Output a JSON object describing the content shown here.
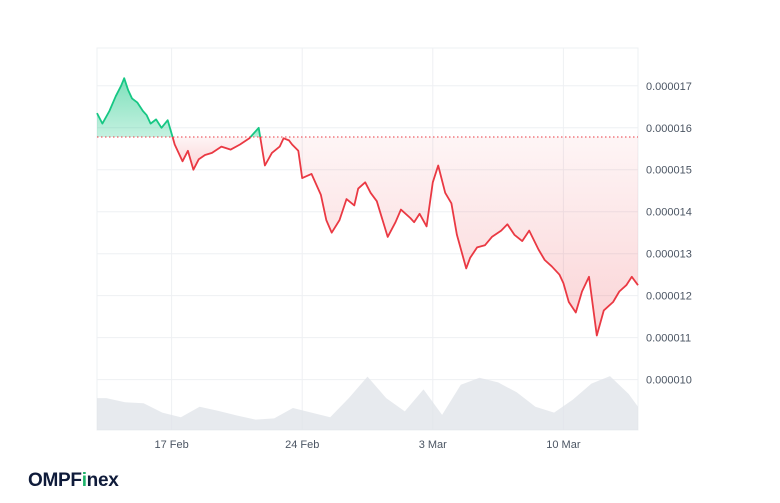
{
  "brand": {
    "name_prefix": "OMPF",
    "name_accent": "i",
    "name_suffix": "nex"
  },
  "colors": {
    "up": "#16c784",
    "down": "#ea3943",
    "volume": "#dfe3e8",
    "grid": "#eef0f3",
    "baseline": "#ea3943"
  },
  "chart_data": {
    "type": "area",
    "x_tick_labels": [
      "17 Feb",
      "24 Feb",
      "3 Mar",
      "10 Mar"
    ],
    "y_tick_labels": [
      "0.000017",
      "0.000016",
      "0.000015",
      "0.000014",
      "0.000013",
      "0.000012",
      "0.000011",
      "0.000010"
    ],
    "y_ticks": [
      1.7e-05,
      1.6e-05,
      1.5e-05,
      1.4e-05,
      1.3e-05,
      1.2e-05,
      1.1e-05,
      1e-05
    ],
    "xlim": [
      "2025-02-13",
      "2025-03-14"
    ],
    "ylim": [
      8.8e-06,
      1.79e-05
    ],
    "baseline": 1.578e-05,
    "grid": true,
    "x_ticks": [
      "2025-02-17",
      "2025-02-24",
      "2025-03-03",
      "2025-03-10"
    ],
    "price_series": {
      "dates": [
        "2025-02-13",
        "2025-02-13",
        "2025-02-13",
        "2025-02-14",
        "2025-02-14",
        "2025-02-14",
        "2025-02-14",
        "2025-02-14",
        "2025-02-15",
        "2025-02-15",
        "2025-02-15",
        "2025-02-15",
        "2025-02-16",
        "2025-02-16",
        "2025-02-16",
        "2025-02-17",
        "2025-02-17",
        "2025-02-17",
        "2025-02-17",
        "2025-02-18",
        "2025-02-18",
        "2025-02-18",
        "2025-02-19",
        "2025-02-19",
        "2025-02-20",
        "2025-02-20",
        "2025-02-21",
        "2025-02-21",
        "2025-02-22",
        "2025-02-22",
        "2025-02-22",
        "2025-02-23",
        "2025-02-23",
        "2025-02-23",
        "2025-02-23",
        "2025-02-24",
        "2025-02-24",
        "2025-02-25",
        "2025-02-25",
        "2025-02-25",
        "2025-02-26",
        "2025-02-26",
        "2025-02-26",
        "2025-02-27",
        "2025-02-27",
        "2025-02-27",
        "2025-02-28",
        "2025-02-28",
        "2025-03-01",
        "2025-03-01",
        "2025-03-01",
        "2025-03-02",
        "2025-03-02",
        "2025-03-02",
        "2025-03-03",
        "2025-03-03",
        "2025-03-03",
        "2025-03-04",
        "2025-03-04",
        "2025-03-04",
        "2025-03-05",
        "2025-03-05",
        "2025-03-05",
        "2025-03-06",
        "2025-03-06",
        "2025-03-07",
        "2025-03-07",
        "2025-03-07",
        "2025-03-08",
        "2025-03-08",
        "2025-03-09",
        "2025-03-09",
        "2025-03-09",
        "2025-03-10",
        "2025-03-10",
        "2025-03-10",
        "2025-03-11",
        "2025-03-11",
        "2025-03-11",
        "2025-03-12",
        "2025-03-12",
        "2025-03-13",
        "2025-03-13",
        "2025-03-13",
        "2025-03-14"
      ],
      "times": [
        "00:00",
        "07:00",
        "16:00",
        "00:00",
        "07:00",
        "11:00",
        "16:00",
        "21:00",
        "04:00",
        "11:00",
        "16:00",
        "21:00",
        "04:00",
        "11:00",
        "19:00",
        "04:00",
        "09:00",
        "14:00",
        "21:00",
        "04:00",
        "11:00",
        "19:00",
        "04:00",
        "16:00",
        "04:00",
        "16:00",
        "04:00",
        "16:00",
        "00:00",
        "09:00",
        "19:00",
        "00:00",
        "07:00",
        "11:00",
        "19:00",
        "00:00",
        "12:00",
        "00:00",
        "07:00",
        "14:00",
        "00:00",
        "09:00",
        "19:00",
        "00:00",
        "09:00",
        "16:00",
        "00:00",
        "14:00",
        "00:00",
        "07:00",
        "19:00",
        "00:00",
        "07:00",
        "16:00",
        "00:00",
        "07:00",
        "16:00",
        "00:00",
        "07:00",
        "19:00",
        "00:00",
        "09:00",
        "19:00",
        "04:00",
        "16:00",
        "00:00",
        "09:00",
        "19:00",
        "04:00",
        "16:00",
        "00:00",
        "09:00",
        "19:00",
        "00:00",
        "07:00",
        "16:00",
        "00:00",
        "09:00",
        "19:00",
        "04:00",
        "16:00",
        "00:00",
        "09:00",
        "16:00",
        "00:00"
      ],
      "values": [
        1.635e-05,
        1.61e-05,
        1.64e-05,
        1.675e-05,
        1.7e-05,
        1.718e-05,
        1.69e-05,
        1.67e-05,
        1.66e-05,
        1.64e-05,
        1.63e-05,
        1.61e-05,
        1.62e-05,
        1.6e-05,
        1.618e-05,
        1.56e-05,
        1.54e-05,
        1.52e-05,
        1.545e-05,
        1.5e-05,
        1.525e-05,
        1.535e-05,
        1.54e-05,
        1.555e-05,
        1.548e-05,
        1.56e-05,
        1.575e-05,
        1.6e-05,
        1.51e-05,
        1.54e-05,
        1.555e-05,
        1.575e-05,
        1.57e-05,
        1.56e-05,
        1.545e-05,
        1.48e-05,
        1.49e-05,
        1.44e-05,
        1.38e-05,
        1.35e-05,
        1.38e-05,
        1.43e-05,
        1.415e-05,
        1.455e-05,
        1.47e-05,
        1.445e-05,
        1.425e-05,
        1.34e-05,
        1.375e-05,
        1.405e-05,
        1.385e-05,
        1.375e-05,
        1.395e-05,
        1.365e-05,
        1.47e-05,
        1.51e-05,
        1.445e-05,
        1.42e-05,
        1.345e-05,
        1.265e-05,
        1.29e-05,
        1.315e-05,
        1.32e-05,
        1.34e-05,
        1.355e-05,
        1.37e-05,
        1.345e-05,
        1.33e-05,
        1.355e-05,
        1.31e-05,
        1.285e-05,
        1.27e-05,
        1.25e-05,
        1.23e-05,
        1.185e-05,
        1.16e-05,
        1.21e-05,
        1.245e-05,
        1.105e-05,
        1.165e-05,
        1.185e-05,
        1.21e-05,
        1.225e-05,
        1.245e-05,
        1.225e-05
      ]
    },
    "volume_series": {
      "dates": [
        "2025-02-13",
        "2025-02-14",
        "2025-02-15",
        "2025-02-16",
        "2025-02-17",
        "2025-02-18",
        "2025-02-19",
        "2025-02-20",
        "2025-02-21",
        "2025-02-22",
        "2025-02-23",
        "2025-02-24",
        "2025-02-25",
        "2025-02-26",
        "2025-02-27",
        "2025-02-28",
        "2025-03-01",
        "2025-03-02",
        "2025-03-03",
        "2025-03-04",
        "2025-03-05",
        "2025-03-06",
        "2025-03-07",
        "2025-03-08",
        "2025-03-09",
        "2025-03-10",
        "2025-03-11",
        "2025-03-12",
        "2025-03-13",
        "2025-03-14"
      ],
      "values": [
        0.55,
        0.48,
        0.46,
        0.3,
        0.22,
        0.4,
        0.33,
        0.25,
        0.18,
        0.2,
        0.38,
        0.3,
        0.22,
        0.55,
        0.92,
        0.55,
        0.32,
        0.7,
        0.26,
        0.78,
        0.9,
        0.82,
        0.65,
        0.4,
        0.3,
        0.52,
        0.8,
        0.93,
        0.62,
        0.4
      ]
    }
  }
}
